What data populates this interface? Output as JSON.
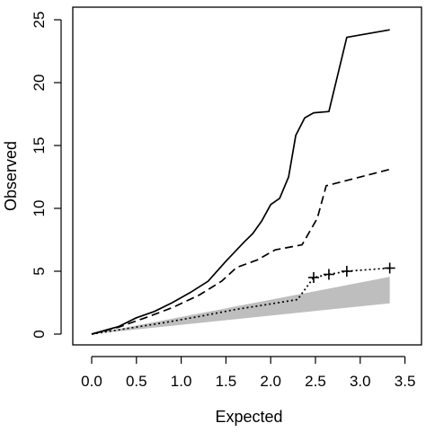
{
  "chart_data": {
    "type": "line",
    "title": "",
    "xlabel": "Expected",
    "ylabel": "Observed",
    "xlim": [
      0,
      3.5
    ],
    "ylim": [
      0,
      25
    ],
    "xticks": [
      "0.0",
      "0.5",
      "1.0",
      "1.5",
      "2.0",
      "2.5",
      "3.0",
      "3.5"
    ],
    "yticks": [
      "0",
      "5",
      "10",
      "15",
      "20",
      "25"
    ],
    "grid": false,
    "legend": "none",
    "band": {
      "color": "#bebebe",
      "x": [
        0.0,
        3.33
      ],
      "lower": [
        0.0,
        2.45
      ],
      "upper": [
        0.0,
        4.55
      ]
    },
    "series": [
      {
        "style": "solid",
        "color": "#000000",
        "points": [
          [
            0.0,
            0.0
          ],
          [
            0.3,
            0.6
          ],
          [
            0.5,
            1.3
          ],
          [
            0.7,
            1.8
          ],
          [
            0.9,
            2.5
          ],
          [
            1.1,
            3.3
          ],
          [
            1.3,
            4.2
          ],
          [
            1.5,
            5.8
          ],
          [
            1.7,
            7.3
          ],
          [
            1.8,
            8.0
          ],
          [
            1.9,
            9.0
          ],
          [
            2.0,
            10.3
          ],
          [
            2.1,
            10.8
          ],
          [
            2.2,
            12.5
          ],
          [
            2.28,
            15.8
          ],
          [
            2.38,
            17.2
          ],
          [
            2.48,
            17.6
          ],
          [
            2.65,
            17.7
          ],
          [
            2.85,
            23.6
          ],
          [
            3.33,
            24.2
          ]
        ]
      },
      {
        "style": "dashed",
        "color": "#000000",
        "points": [
          [
            0.0,
            0.0
          ],
          [
            0.3,
            0.55
          ],
          [
            0.6,
            1.3
          ],
          [
            0.9,
            2.1
          ],
          [
            1.2,
            3.1
          ],
          [
            1.45,
            4.2
          ],
          [
            1.62,
            5.3
          ],
          [
            1.85,
            5.9
          ],
          [
            2.05,
            6.7
          ],
          [
            2.35,
            7.1
          ],
          [
            2.52,
            9.2
          ],
          [
            2.62,
            11.8
          ],
          [
            3.33,
            13.1
          ]
        ]
      },
      {
        "style": "dotted",
        "color": "#000000",
        "points": [
          [
            0.0,
            0.0
          ],
          [
            0.4,
            0.45
          ],
          [
            0.8,
            0.9
          ],
          [
            1.2,
            1.4
          ],
          [
            1.6,
            1.95
          ],
          [
            2.0,
            2.4
          ],
          [
            2.3,
            2.75
          ],
          [
            2.48,
            4.5
          ],
          [
            2.65,
            4.75
          ],
          [
            2.85,
            5.0
          ],
          [
            3.33,
            5.25
          ]
        ],
        "markers": [
          [
            2.48,
            4.5
          ],
          [
            2.65,
            4.75
          ],
          [
            2.85,
            5.0
          ],
          [
            3.33,
            5.25
          ]
        ],
        "marker": "+"
      }
    ]
  }
}
